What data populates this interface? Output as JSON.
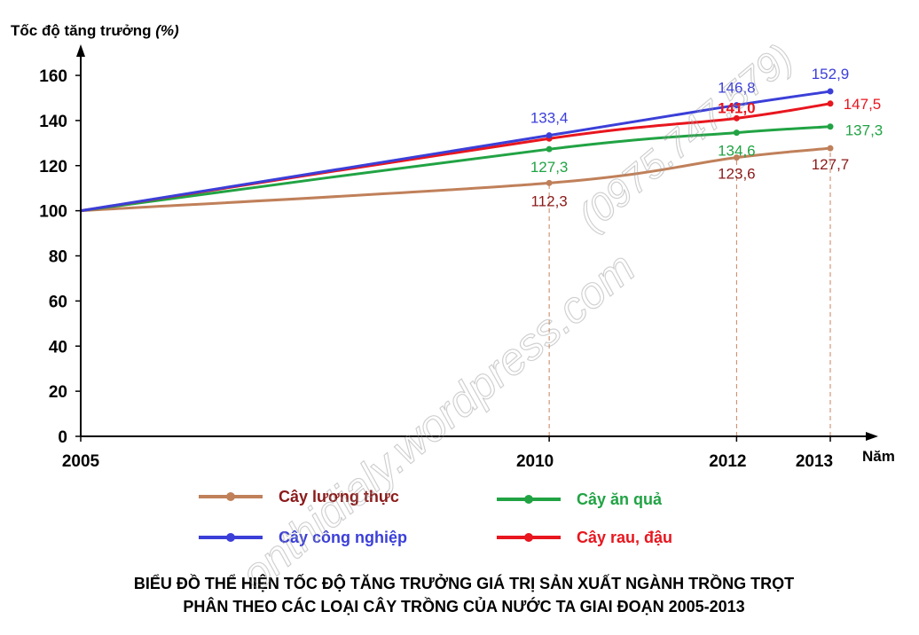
{
  "chart_data": {
    "type": "line",
    "title_lines": [
      "BIỂU ĐỒ THỂ HIỆN TỐC ĐỘ TĂNG TRƯỞNG GIÁ TRỊ SẢN XUẤT NGÀNH TRỒNG TRỌT",
      "PHÂN THEO CÁC LOẠI CÂY TRỒNG CỦA NƯỚC TA GIAI ĐOẠN 2005-2013"
    ],
    "ylabel_main": "Tốc độ tăng trưởng ",
    "ylabel_unit": "(%)",
    "xlabel": "Năm",
    "x": [
      2005,
      2010,
      2012,
      2013
    ],
    "x_tick_labels": [
      "2005",
      "2010",
      "2012",
      "2013"
    ],
    "ylim": [
      0,
      170
    ],
    "y_ticks": [
      0,
      20,
      40,
      60,
      80,
      100,
      120,
      140,
      160
    ],
    "y_tick_labels": [
      "0",
      "20",
      "40",
      "60",
      "80",
      "100",
      "120",
      "140",
      "160"
    ],
    "grid": false,
    "legend_position": "bottom",
    "series": [
      {
        "name": "Cây lương thực",
        "color": "#C0805A",
        "label_color": "#8B1A1A",
        "values": [
          100,
          112.3,
          123.6,
          127.7
        ],
        "labels": [
          "",
          "112,3",
          "123,6",
          "127,7"
        ]
      },
      {
        "name": "Cây công nghiệp",
        "color": "#3B3FD8",
        "label_color": "#3B3FD8",
        "values": [
          100,
          133.4,
          146.8,
          152.9
        ],
        "labels": [
          "",
          "133,4",
          "146,8",
          "152,9"
        ]
      },
      {
        "name": "Cây ăn quả",
        "color": "#21A344",
        "label_color": "#21A344",
        "values": [
          100,
          127.3,
          134.6,
          137.3
        ],
        "labels": [
          "",
          "127,3",
          "134,6",
          "137,3"
        ]
      },
      {
        "name": "Cây rau, đậu",
        "color": "#E8161E",
        "label_color": "#E8161E",
        "values": [
          100,
          132.0,
          141.0,
          147.5
        ],
        "labels": [
          "",
          "",
          "141,0",
          "147,5"
        ]
      }
    ]
  },
  "watermark": {
    "main": "onthidialy.wordpress.com",
    "phone": "(0975.747.579)"
  }
}
